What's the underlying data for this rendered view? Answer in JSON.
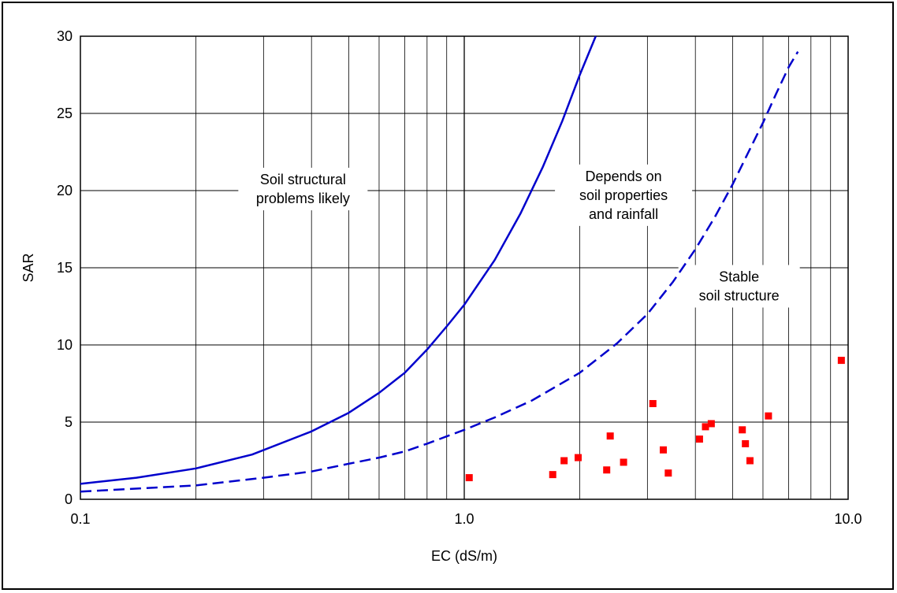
{
  "chart_data": {
    "type": "scatter",
    "xscale": "log",
    "xlim": [
      0.1,
      10.0
    ],
    "ylim": [
      0,
      30
    ],
    "xlabel": "EC (dS/m)",
    "ylabel": "SAR",
    "x_ticks": [
      "0.1",
      "1.0",
      "10.0"
    ],
    "y_ticks": [
      "0",
      "5",
      "10",
      "15",
      "20",
      "25",
      "30"
    ],
    "grid": true,
    "colors": {
      "lines": "#0000cc",
      "points": "#ff0000",
      "grid": "#000000"
    },
    "series": [
      {
        "style": "solid",
        "x": [
          0.1,
          0.14,
          0.2,
          0.28,
          0.4,
          0.5,
          0.6,
          0.7,
          0.8,
          0.9,
          1.0,
          1.2,
          1.4,
          1.6,
          1.8,
          2.0,
          2.2
        ],
        "y": [
          1.0,
          1.4,
          2.0,
          2.9,
          4.4,
          5.6,
          6.9,
          8.2,
          9.7,
          11.2,
          12.6,
          15.5,
          18.5,
          21.5,
          24.5,
          27.5,
          30.0
        ]
      },
      {
        "style": "dashed",
        "x": [
          0.1,
          0.2,
          0.3,
          0.4,
          0.5,
          0.6,
          0.7,
          0.8,
          1.0,
          1.2,
          1.5,
          2.0,
          2.5,
          3.0,
          3.5,
          4.0,
          4.5,
          5.0,
          5.5,
          6.0,
          6.5,
          7.0,
          7.4
        ],
        "y": [
          0.5,
          0.9,
          1.4,
          1.8,
          2.3,
          2.7,
          3.1,
          3.6,
          4.5,
          5.3,
          6.4,
          8.2,
          10.1,
          12.0,
          14.1,
          16.2,
          18.3,
          20.4,
          22.5,
          24.4,
          26.3,
          28.0,
          29.0
        ]
      },
      {
        "style": "markers",
        "x": [
          1.03,
          1.7,
          1.82,
          1.98,
          2.35,
          2.4,
          2.6,
          3.1,
          3.3,
          3.4,
          4.1,
          4.25,
          4.4,
          5.3,
          5.4,
          5.55,
          6.2,
          9.6
        ],
        "y": [
          1.4,
          1.6,
          2.5,
          2.7,
          1.9,
          4.1,
          2.4,
          6.2,
          3.2,
          1.7,
          3.9,
          4.7,
          4.9,
          4.5,
          3.6,
          2.5,
          5.4,
          9.0
        ]
      }
    ],
    "annotations": [
      {
        "lines": [
          "Soil structural",
          "problems likely"
        ],
        "x": 0.38,
        "y": 20.1
      },
      {
        "lines": [
          "Depends on",
          "soil  properties",
          "and rainfall"
        ],
        "x": 2.6,
        "y": 19.7
      },
      {
        "lines": [
          "Stable",
          "soil structure"
        ],
        "x": 5.2,
        "y": 13.8
      }
    ]
  }
}
